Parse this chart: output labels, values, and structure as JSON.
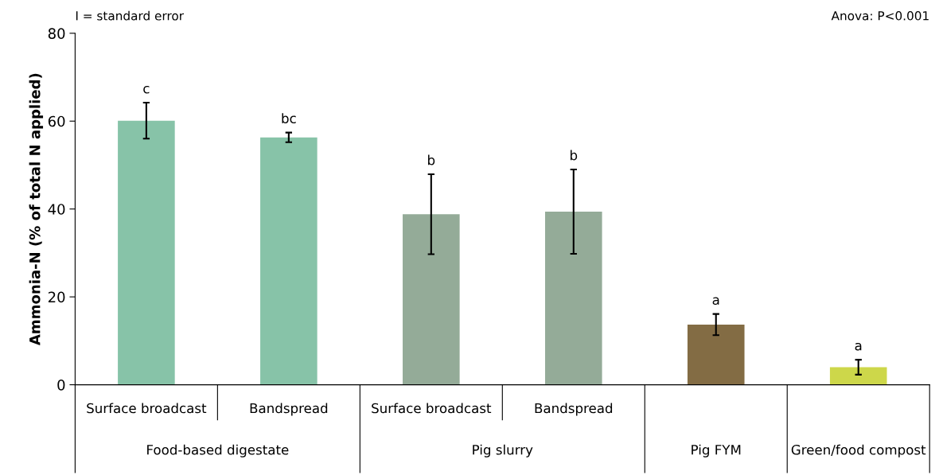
{
  "chart_data": {
    "type": "bar",
    "ylabel": "Ammonia-N (% of total N applied)",
    "categories": [
      "Surface broadcast",
      "Bandspread",
      "Surface broadcast",
      "Bandspread",
      null,
      null
    ],
    "values": [
      60.1,
      56.3,
      38.8,
      39.4,
      13.7,
      4.0
    ],
    "errors": [
      4.1,
      1.1,
      9.1,
      9.6,
      2.4,
      1.7
    ],
    "colors": [
      "#87c3a8",
      "#87c3a8",
      "#94ab98",
      "#94ab98",
      "#836c44",
      "#cdd74a"
    ],
    "ylim": [
      0,
      80
    ],
    "yticks": [
      0,
      20,
      40,
      60,
      80
    ],
    "grid": false,
    "legend": false,
    "annotations": [
      "I = standard error",
      "Anova: P<0.001",
      "Food-based digestate",
      "Pig slurry",
      "Pig FYM",
      "Green/food compost",
      "c",
      "bc",
      "b",
      "b",
      "a",
      "a"
    ]
  }
}
